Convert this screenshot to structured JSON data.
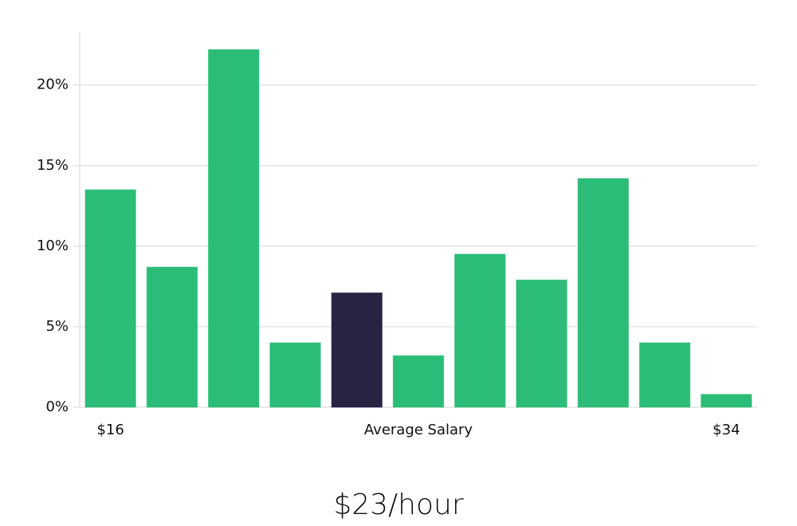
{
  "chart_data": {
    "type": "bar",
    "categories": [
      "$16",
      null,
      null,
      null,
      null,
      null,
      null,
      null,
      null,
      null,
      "$34"
    ],
    "values": [
      13.5,
      8.7,
      22.2,
      4.0,
      7.1,
      3.2,
      9.5,
      7.9,
      14.2,
      4.0,
      0.8
    ],
    "colors": [
      "#2bbd77",
      "#2bbd77",
      "#2bbd77",
      "#2bbd77",
      "#272443",
      "#2bbd77",
      "#2bbd77",
      "#2bbd77",
      "#2bbd77",
      "#2bbd77",
      "#2bbd77"
    ],
    "x_label": "Average Salary",
    "annotation": "$23/hour",
    "ylim": [
      0,
      23.3
    ],
    "yticks": [
      {
        "value": 0,
        "label": "0%"
      },
      {
        "value": 5,
        "label": "5%"
      },
      {
        "value": 10,
        "label": "10%"
      },
      {
        "value": 15,
        "label": "15%"
      },
      {
        "value": 20,
        "label": "20%"
      }
    ],
    "grid": true
  }
}
